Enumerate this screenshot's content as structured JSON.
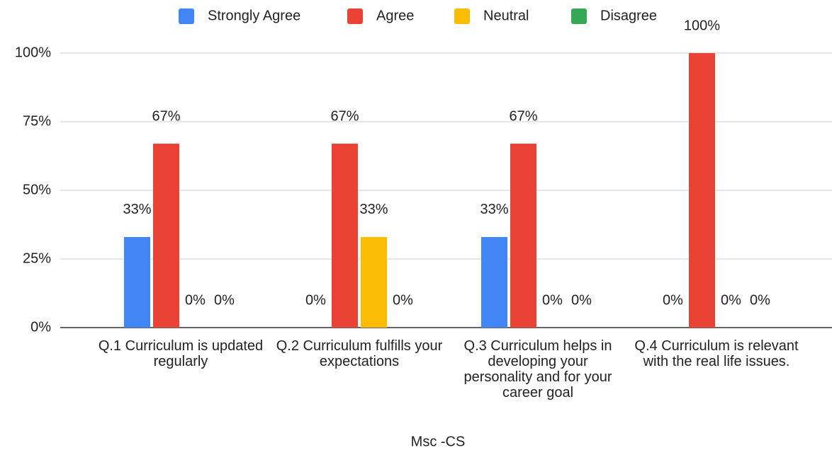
{
  "chart_data": {
    "type": "bar",
    "x_label": "Msc -CS",
    "categories": [
      "Q.1 Curriculum is updated regularly",
      "Q.2 Curriculum fulfills your expectations",
      "Q.3 Curriculum helps in developing your personality and for your career goal",
      "Q.4 Curriculum is relevant with the real life issues."
    ],
    "series": [
      {
        "name": "Strongly Agree",
        "color": "#4285f4",
        "values": [
          33,
          0,
          33,
          0
        ],
        "value_labels": [
          "33%",
          "0%",
          "33%",
          "0%"
        ]
      },
      {
        "name": "Agree",
        "color": "#ea4335",
        "values": [
          67,
          67,
          67,
          100
        ],
        "value_labels": [
          "67%",
          "67%",
          "67%",
          "100%"
        ]
      },
      {
        "name": "Neutral",
        "color": "#fbbc04",
        "values": [
          0,
          33,
          0,
          0
        ],
        "value_labels": [
          "0%",
          "33%",
          "0%",
          "0%"
        ]
      },
      {
        "name": "Disagree",
        "color": "#34a853",
        "values": [
          0,
          0,
          0,
          0
        ],
        "value_labels": [
          "0%",
          "0%",
          "0%",
          "0%"
        ]
      }
    ],
    "ylim": [
      0,
      100
    ],
    "yticks": [
      {
        "value": 0,
        "label": "0%"
      },
      {
        "value": 25,
        "label": "25%"
      },
      {
        "value": 50,
        "label": "50%"
      },
      {
        "value": 75,
        "label": "75%"
      },
      {
        "value": 100,
        "label": "100%"
      }
    ],
    "grid": true,
    "legend": "top"
  }
}
